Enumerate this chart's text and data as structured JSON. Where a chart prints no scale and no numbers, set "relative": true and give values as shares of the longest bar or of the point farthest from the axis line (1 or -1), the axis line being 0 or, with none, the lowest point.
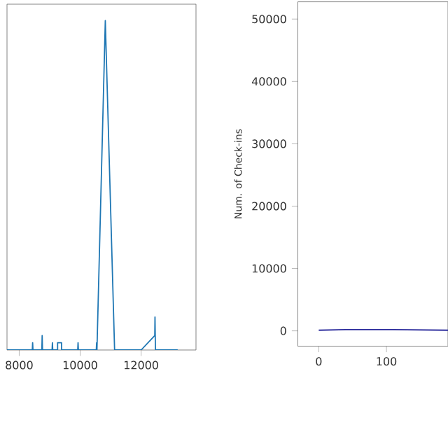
{
  "chart_data": [
    {
      "type": "line",
      "relative": true,
      "color": "#1f77b4",
      "xlim": [
        7600,
        13800
      ],
      "xticks": [
        8000,
        10000,
        12000
      ],
      "x": [
        7600,
        8430,
        8441,
        8452,
        8743,
        8754,
        8765,
        9079,
        9090,
        9101,
        9260,
        9260,
        9390,
        9390,
        9920,
        9931,
        9942,
        10529,
        10540,
        10551,
        10825,
        11130,
        12000,
        12448,
        12455,
        12470,
        13200
      ],
      "values": [
        0,
        0,
        0.022,
        0,
        0,
        0.044,
        0,
        0,
        0.022,
        0,
        0,
        0.022,
        0.022,
        0,
        0,
        0.022,
        0,
        0,
        0.022,
        0,
        1,
        0,
        0,
        0.044,
        0.1,
        0,
        0
      ]
    },
    {
      "type": "line",
      "color": "#2b2b9c",
      "xlim": [
        -31,
        191
      ],
      "xticks": [
        0,
        100
      ],
      "ylim": [
        -2466,
        52765
      ],
      "yticks": [
        0,
        10000,
        20000,
        30000,
        40000,
        50000
      ],
      "ylabel": "Num. of Check-ins",
      "x": [
        0,
        40,
        110,
        191
      ],
      "values": [
        100,
        200,
        200,
        100
      ]
    }
  ]
}
